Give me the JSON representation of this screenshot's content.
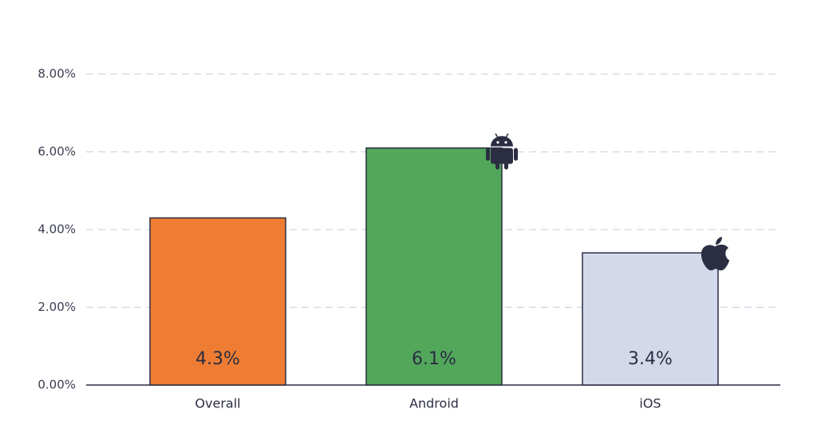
{
  "chart_data": {
    "type": "bar",
    "categories": [
      "Overall",
      "Android",
      "iOS"
    ],
    "values": [
      4.3,
      6.1,
      3.4
    ],
    "value_labels": [
      "4.3%",
      "6.1%",
      "3.4%"
    ],
    "colors": [
      "#ee7d33",
      "#52a75b",
      "#d3d8ea"
    ],
    "ylim": [
      0,
      8
    ],
    "yticks": [
      {
        "value": 0,
        "label": "0.00%"
      },
      {
        "value": 2,
        "label": "2.00%"
      },
      {
        "value": 4,
        "label": "4.00%"
      },
      {
        "value": 6,
        "label": "6.00%"
      },
      {
        "value": 8,
        "label": "8.00%"
      }
    ],
    "grid": true
  }
}
